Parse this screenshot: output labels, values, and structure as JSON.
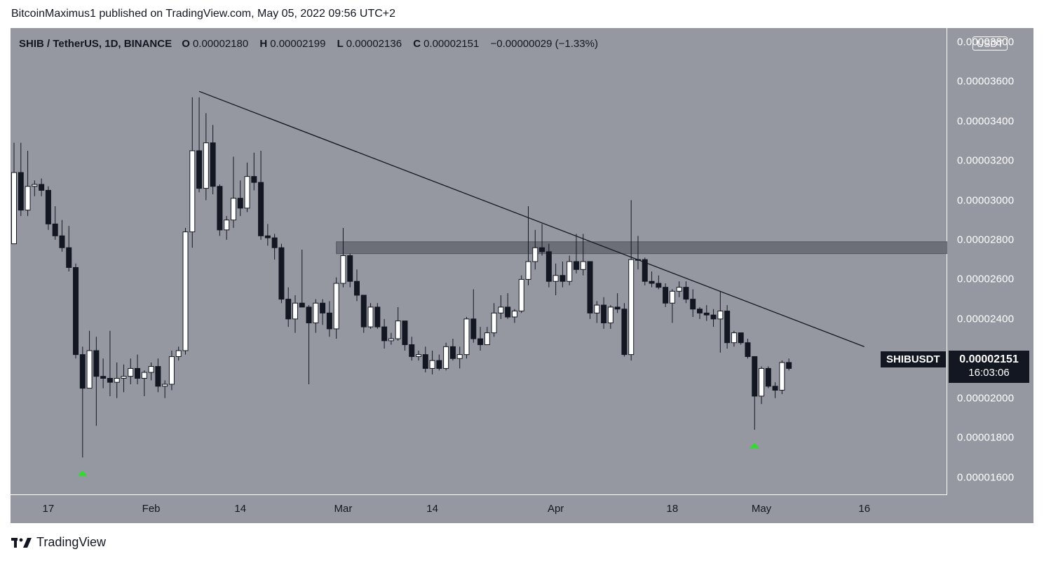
{
  "header": {
    "publisher_line": "BitcoinMaximus1 published on TradingView.com, May 05, 2022 09:56 UTC+2"
  },
  "legend": {
    "symbol": "SHIB / TetherUS, 1D, BINANCE",
    "open_label": "O",
    "open_value": "0.00002180",
    "high_label": "H",
    "high_value": "0.00002199",
    "low_label": "L",
    "low_value": "0.00002136",
    "close_label": "C",
    "close_value": "0.00002151",
    "change": "−0.00000029 (−1.33%)"
  },
  "currency_badge": "USDT",
  "colors": {
    "background": "#9598a1",
    "bull_fill": "#ffffff",
    "bear_fill": "#131722",
    "signal_arrow": "#2fdc2f",
    "resistance_zone": "#5f6269"
  },
  "symbol_tag": "SHIBUSDT",
  "last_price": "0.00002151",
  "countdown": "16:03:06",
  "footer": {
    "brand": "TradingView",
    "logo_icon": "tradingview-logo-icon"
  },
  "chart_data": {
    "type": "candlestick",
    "ylim": [
      1.51e-05,
      3.87e-05
    ],
    "y_ticks": [
      {
        "value": 3.8e-05,
        "label": "0.00003800"
      },
      {
        "value": 3.6e-05,
        "label": "0.00003600"
      },
      {
        "value": 3.4e-05,
        "label": "0.00003400"
      },
      {
        "value": 3.2e-05,
        "label": "0.00003200"
      },
      {
        "value": 3e-05,
        "label": "0.00003000"
      },
      {
        "value": 2.8e-05,
        "label": "0.00002800"
      },
      {
        "value": 2.6e-05,
        "label": "0.00002600"
      },
      {
        "value": 2.4e-05,
        "label": "0.00002400"
      },
      {
        "value": 2.2e-05,
        "label": "0.00002200"
      },
      {
        "value": 2e-05,
        "label": "0.00002000"
      },
      {
        "value": 1.8e-05,
        "label": "0.00001800"
      },
      {
        "value": 1.6e-05,
        "label": "0.00001600"
      }
    ],
    "x_ticks": [
      {
        "date": "2022-01-17",
        "label": "17"
      },
      {
        "date": "2022-02-01",
        "label": "Feb"
      },
      {
        "date": "2022-02-14",
        "label": "14"
      },
      {
        "date": "2022-03-01",
        "label": "Mar"
      },
      {
        "date": "2022-03-14",
        "label": "14"
      },
      {
        "date": "2022-04-01",
        "label": "Apr"
      },
      {
        "date": "2022-04-18",
        "label": "18"
      },
      {
        "date": "2022-05-01",
        "label": "May"
      },
      {
        "date": "2022-05-16",
        "label": "16"
      }
    ],
    "x_range": [
      "2022-01-12",
      "2022-05-19"
    ],
    "candles": [
      {
        "date": "2022-01-12",
        "o": 2.78e-05,
        "h": 3.29e-05,
        "l": 2.78e-05,
        "c": 3.14e-05
      },
      {
        "date": "2022-01-13",
        "o": 3.14e-05,
        "h": 3.29e-05,
        "l": 2.92e-05,
        "c": 2.95e-05
      },
      {
        "date": "2022-01-14",
        "o": 2.95e-05,
        "h": 3.25e-05,
        "l": 2.92e-05,
        "c": 3.07e-05
      },
      {
        "date": "2022-01-15",
        "o": 3.07e-05,
        "h": 3.1e-05,
        "l": 3.02e-05,
        "c": 3.08e-05
      },
      {
        "date": "2022-01-16",
        "o": 3.08e-05,
        "h": 3.11e-05,
        "l": 3.02e-05,
        "c": 3.05e-05
      },
      {
        "date": "2022-01-17",
        "o": 3.05e-05,
        "h": 3.07e-05,
        "l": 2.85e-05,
        "c": 2.88e-05
      },
      {
        "date": "2022-01-18",
        "o": 2.88e-05,
        "h": 2.97e-05,
        "l": 2.8e-05,
        "c": 2.82e-05
      },
      {
        "date": "2022-01-19",
        "o": 2.82e-05,
        "h": 2.9e-05,
        "l": 2.74e-05,
        "c": 2.76e-05
      },
      {
        "date": "2022-01-20",
        "o": 2.76e-05,
        "h": 2.87e-05,
        "l": 2.64e-05,
        "c": 2.66e-05
      },
      {
        "date": "2022-01-21",
        "o": 2.66e-05,
        "h": 2.68e-05,
        "l": 2.2e-05,
        "c": 2.22e-05
      },
      {
        "date": "2022-01-22",
        "o": 2.22e-05,
        "h": 2.26e-05,
        "l": 1.7e-05,
        "c": 2.05e-05
      },
      {
        "date": "2022-01-23",
        "o": 2.05e-05,
        "h": 2.34e-05,
        "l": 2.05e-05,
        "c": 2.24e-05
      },
      {
        "date": "2022-01-24",
        "o": 2.24e-05,
        "h": 2.31e-05,
        "l": 1.86e-05,
        "c": 2.11e-05
      },
      {
        "date": "2022-01-25",
        "o": 2.11e-05,
        "h": 2.2e-05,
        "l": 2.05e-05,
        "c": 2.1e-05
      },
      {
        "date": "2022-01-26",
        "o": 2.1e-05,
        "h": 2.34e-05,
        "l": 2.01e-05,
        "c": 2.08e-05
      },
      {
        "date": "2022-01-27",
        "o": 2.08e-05,
        "h": 2.18e-05,
        "l": 2e-05,
        "c": 2.1e-05
      },
      {
        "date": "2022-01-28",
        "o": 2.1e-05,
        "h": 2.17e-05,
        "l": 2.03e-05,
        "c": 2.11e-05
      },
      {
        "date": "2022-01-29",
        "o": 2.11e-05,
        "h": 2.2e-05,
        "l": 2.07e-05,
        "c": 2.15e-05
      },
      {
        "date": "2022-01-30",
        "o": 2.15e-05,
        "h": 2.22e-05,
        "l": 2.07e-05,
        "c": 2.1e-05
      },
      {
        "date": "2022-01-31",
        "o": 2.1e-05,
        "h": 2.14e-05,
        "l": 2.01e-05,
        "c": 2.13e-05
      },
      {
        "date": "2022-02-01",
        "o": 2.13e-05,
        "h": 2.18e-05,
        "l": 2.09e-05,
        "c": 2.16e-05
      },
      {
        "date": "2022-02-02",
        "o": 2.16e-05,
        "h": 2.2e-05,
        "l": 2.03e-05,
        "c": 2.06e-05
      },
      {
        "date": "2022-02-03",
        "o": 2.06e-05,
        "h": 2.09e-05,
        "l": 2e-05,
        "c": 2.07e-05
      },
      {
        "date": "2022-02-04",
        "o": 2.07e-05,
        "h": 2.24e-05,
        "l": 2.04e-05,
        "c": 2.21e-05
      },
      {
        "date": "2022-02-05",
        "o": 2.21e-05,
        "h": 2.26e-05,
        "l": 2.19e-05,
        "c": 2.24e-05
      },
      {
        "date": "2022-02-06",
        "o": 2.24e-05,
        "h": 2.86e-05,
        "l": 2.22e-05,
        "c": 2.84e-05
      },
      {
        "date": "2022-02-07",
        "o": 2.84e-05,
        "h": 3.52e-05,
        "l": 2.76e-05,
        "c": 3.25e-05
      },
      {
        "date": "2022-02-08",
        "o": 3.25e-05,
        "h": 3.52e-05,
        "l": 3.04e-05,
        "c": 3.06e-05
      },
      {
        "date": "2022-02-09",
        "o": 3.06e-05,
        "h": 3.44e-05,
        "l": 3e-05,
        "c": 3.29e-05
      },
      {
        "date": "2022-02-10",
        "o": 3.29e-05,
        "h": 3.38e-05,
        "l": 3.03e-05,
        "c": 3.07e-05
      },
      {
        "date": "2022-02-11",
        "o": 3.07e-05,
        "h": 3.08e-05,
        "l": 2.82e-05,
        "c": 2.85e-05
      },
      {
        "date": "2022-02-12",
        "o": 2.85e-05,
        "h": 2.92e-05,
        "l": 2.8e-05,
        "c": 2.9e-05
      },
      {
        "date": "2022-02-13",
        "o": 2.9e-05,
        "h": 3.22e-05,
        "l": 2.86e-05,
        "c": 3.01e-05
      },
      {
        "date": "2022-02-14",
        "o": 3.01e-05,
        "h": 3.1e-05,
        "l": 2.92e-05,
        "c": 2.96e-05
      },
      {
        "date": "2022-02-15",
        "o": 2.96e-05,
        "h": 3.19e-05,
        "l": 2.94e-05,
        "c": 3.12e-05
      },
      {
        "date": "2022-02-16",
        "o": 3.12e-05,
        "h": 3.24e-05,
        "l": 3.05e-05,
        "c": 3.09e-05
      },
      {
        "date": "2022-02-17",
        "o": 3.09e-05,
        "h": 3.25e-05,
        "l": 2.8e-05,
        "c": 2.82e-05
      },
      {
        "date": "2022-02-18",
        "o": 2.82e-05,
        "h": 2.88e-05,
        "l": 2.77e-05,
        "c": 2.81e-05
      },
      {
        "date": "2022-02-19",
        "o": 2.81e-05,
        "h": 2.83e-05,
        "l": 2.7e-05,
        "c": 2.76e-05
      },
      {
        "date": "2022-02-20",
        "o": 2.76e-05,
        "h": 2.78e-05,
        "l": 2.48e-05,
        "c": 2.5e-05
      },
      {
        "date": "2022-02-21",
        "o": 2.5e-05,
        "h": 2.56e-05,
        "l": 2.36e-05,
        "c": 2.4e-05
      },
      {
        "date": "2022-02-22",
        "o": 2.4e-05,
        "h": 2.52e-05,
        "l": 2.33e-05,
        "c": 2.48e-05
      },
      {
        "date": "2022-02-23",
        "o": 2.48e-05,
        "h": 2.75e-05,
        "l": 2.46e-05,
        "c": 2.46e-05
      },
      {
        "date": "2022-02-24",
        "o": 2.46e-05,
        "h": 2.47e-05,
        "l": 2.07e-05,
        "c": 2.38e-05
      },
      {
        "date": "2022-02-25",
        "o": 2.38e-05,
        "h": 2.5e-05,
        "l": 2.33e-05,
        "c": 2.48e-05
      },
      {
        "date": "2022-02-26",
        "o": 2.48e-05,
        "h": 2.5e-05,
        "l": 2.37e-05,
        "c": 2.43e-05
      },
      {
        "date": "2022-02-27",
        "o": 2.43e-05,
        "h": 2.49e-05,
        "l": 2.31e-05,
        "c": 2.35e-05
      },
      {
        "date": "2022-02-28",
        "o": 2.35e-05,
        "h": 2.61e-05,
        "l": 2.3e-05,
        "c": 2.58e-05
      },
      {
        "date": "2022-03-01",
        "o": 2.58e-05,
        "h": 2.86e-05,
        "l": 2.56e-05,
        "c": 2.72e-05
      },
      {
        "date": "2022-03-02",
        "o": 2.72e-05,
        "h": 2.73e-05,
        "l": 2.56e-05,
        "c": 2.59e-05
      },
      {
        "date": "2022-03-03",
        "o": 2.59e-05,
        "h": 2.65e-05,
        "l": 2.49e-05,
        "c": 2.52e-05
      },
      {
        "date": "2022-03-04",
        "o": 2.52e-05,
        "h": 2.52e-05,
        "l": 2.33e-05,
        "c": 2.36e-05
      },
      {
        "date": "2022-03-05",
        "o": 2.36e-05,
        "h": 2.48e-05,
        "l": 2.35e-05,
        "c": 2.46e-05
      },
      {
        "date": "2022-03-06",
        "o": 2.46e-05,
        "h": 2.48e-05,
        "l": 2.35e-05,
        "c": 2.36e-05
      },
      {
        "date": "2022-03-07",
        "o": 2.36e-05,
        "h": 2.4e-05,
        "l": 2.25e-05,
        "c": 2.29e-05
      },
      {
        "date": "2022-03-08",
        "o": 2.29e-05,
        "h": 2.33e-05,
        "l": 2.27e-05,
        "c": 2.3e-05
      },
      {
        "date": "2022-03-09",
        "o": 2.3e-05,
        "h": 2.46e-05,
        "l": 2.29e-05,
        "c": 2.39e-05
      },
      {
        "date": "2022-03-10",
        "o": 2.39e-05,
        "h": 2.39e-05,
        "l": 2.24e-05,
        "c": 2.27e-05
      },
      {
        "date": "2022-03-11",
        "o": 2.27e-05,
        "h": 2.31e-05,
        "l": 2.19e-05,
        "c": 2.21e-05
      },
      {
        "date": "2022-03-12",
        "o": 2.21e-05,
        "h": 2.24e-05,
        "l": 2.19e-05,
        "c": 2.22e-05
      },
      {
        "date": "2022-03-13",
        "o": 2.22e-05,
        "h": 2.26e-05,
        "l": 2.13e-05,
        "c": 2.15e-05
      },
      {
        "date": "2022-03-14",
        "o": 2.15e-05,
        "h": 2.24e-05,
        "l": 2.12e-05,
        "c": 2.19e-05
      },
      {
        "date": "2022-03-15",
        "o": 2.19e-05,
        "h": 2.22e-05,
        "l": 2.14e-05,
        "c": 2.15e-05
      },
      {
        "date": "2022-03-16",
        "o": 2.15e-05,
        "h": 2.28e-05,
        "l": 2.14e-05,
        "c": 2.26e-05
      },
      {
        "date": "2022-03-17",
        "o": 2.26e-05,
        "h": 2.3e-05,
        "l": 2.19e-05,
        "c": 2.2e-05
      },
      {
        "date": "2022-03-18",
        "o": 2.2e-05,
        "h": 2.26e-05,
        "l": 2.15e-05,
        "c": 2.22e-05
      },
      {
        "date": "2022-03-19",
        "o": 2.22e-05,
        "h": 2.41e-05,
        "l": 2.2e-05,
        "c": 2.4e-05
      },
      {
        "date": "2022-03-20",
        "o": 2.4e-05,
        "h": 2.55e-05,
        "l": 2.28e-05,
        "c": 2.3e-05
      },
      {
        "date": "2022-03-21",
        "o": 2.3e-05,
        "h": 2.36e-05,
        "l": 2.24e-05,
        "c": 2.27e-05
      },
      {
        "date": "2022-03-22",
        "o": 2.27e-05,
        "h": 2.36e-05,
        "l": 2.27e-05,
        "c": 2.33e-05
      },
      {
        "date": "2022-03-23",
        "o": 2.33e-05,
        "h": 2.48e-05,
        "l": 2.31e-05,
        "c": 2.43e-05
      },
      {
        "date": "2022-03-24",
        "o": 2.43e-05,
        "h": 2.52e-05,
        "l": 2.4e-05,
        "c": 2.46e-05
      },
      {
        "date": "2022-03-25",
        "o": 2.46e-05,
        "h": 2.53e-05,
        "l": 2.4e-05,
        "c": 2.41e-05
      },
      {
        "date": "2022-03-26",
        "o": 2.41e-05,
        "h": 2.45e-05,
        "l": 2.38e-05,
        "c": 2.44e-05
      },
      {
        "date": "2022-03-27",
        "o": 2.44e-05,
        "h": 2.62e-05,
        "l": 2.43e-05,
        "c": 2.6e-05
      },
      {
        "date": "2022-03-28",
        "o": 2.6e-05,
        "h": 2.97e-05,
        "l": 2.57e-05,
        "c": 2.69e-05
      },
      {
        "date": "2022-03-29",
        "o": 2.69e-05,
        "h": 2.85e-05,
        "l": 2.65e-05,
        "c": 2.76e-05
      },
      {
        "date": "2022-03-30",
        "o": 2.76e-05,
        "h": 2.88e-05,
        "l": 2.72e-05,
        "c": 2.74e-05
      },
      {
        "date": "2022-03-31",
        "o": 2.74e-05,
        "h": 2.78e-05,
        "l": 2.56e-05,
        "c": 2.59e-05
      },
      {
        "date": "2022-04-01",
        "o": 2.59e-05,
        "h": 2.68e-05,
        "l": 2.52e-05,
        "c": 2.62e-05
      },
      {
        "date": "2022-04-02",
        "o": 2.62e-05,
        "h": 2.69e-05,
        "l": 2.56e-05,
        "c": 2.59e-05
      },
      {
        "date": "2022-04-03",
        "o": 2.59e-05,
        "h": 2.72e-05,
        "l": 2.57e-05,
        "c": 2.69e-05
      },
      {
        "date": "2022-04-04",
        "o": 2.69e-05,
        "h": 2.83e-05,
        "l": 2.63e-05,
        "c": 2.65e-05
      },
      {
        "date": "2022-04-05",
        "o": 2.65e-05,
        "h": 2.83e-05,
        "l": 2.62e-05,
        "c": 2.69e-05
      },
      {
        "date": "2022-04-06",
        "o": 2.69e-05,
        "h": 2.69e-05,
        "l": 2.4e-05,
        "c": 2.43e-05
      },
      {
        "date": "2022-04-07",
        "o": 2.43e-05,
        "h": 2.49e-05,
        "l": 2.38e-05,
        "c": 2.47e-05
      },
      {
        "date": "2022-04-08",
        "o": 2.47e-05,
        "h": 2.51e-05,
        "l": 2.35e-05,
        "c": 2.38e-05
      },
      {
        "date": "2022-04-09",
        "o": 2.38e-05,
        "h": 2.47e-05,
        "l": 2.35e-05,
        "c": 2.46e-05
      },
      {
        "date": "2022-04-10",
        "o": 2.46e-05,
        "h": 2.53e-05,
        "l": 2.43e-05,
        "c": 2.45e-05
      },
      {
        "date": "2022-04-11",
        "o": 2.45e-05,
        "h": 2.48e-05,
        "l": 2.21e-05,
        "c": 2.22e-05
      },
      {
        "date": "2022-04-12",
        "o": 2.22e-05,
        "h": 3e-05,
        "l": 2.19e-05,
        "c": 2.7e-05
      },
      {
        "date": "2022-04-13",
        "o": 2.7e-05,
        "h": 2.82e-05,
        "l": 2.65e-05,
        "c": 2.7e-05
      },
      {
        "date": "2022-04-14",
        "o": 2.7e-05,
        "h": 2.71e-05,
        "l": 2.57e-05,
        "c": 2.59e-05
      },
      {
        "date": "2022-04-15",
        "o": 2.59e-05,
        "h": 2.64e-05,
        "l": 2.56e-05,
        "c": 2.58e-05
      },
      {
        "date": "2022-04-16",
        "o": 2.58e-05,
        "h": 2.62e-05,
        "l": 2.55e-05,
        "c": 2.56e-05
      },
      {
        "date": "2022-04-17",
        "o": 2.56e-05,
        "h": 2.58e-05,
        "l": 2.46e-05,
        "c": 2.48e-05
      },
      {
        "date": "2022-04-18",
        "o": 2.48e-05,
        "h": 2.55e-05,
        "l": 2.38e-05,
        "c": 2.54e-05
      },
      {
        "date": "2022-04-19",
        "o": 2.54e-05,
        "h": 2.59e-05,
        "l": 2.51e-05,
        "c": 2.56e-05
      },
      {
        "date": "2022-04-20",
        "o": 2.56e-05,
        "h": 2.59e-05,
        "l": 2.48e-05,
        "c": 2.5e-05
      },
      {
        "date": "2022-04-21",
        "o": 2.5e-05,
        "h": 2.55e-05,
        "l": 2.41e-05,
        "c": 2.45e-05
      },
      {
        "date": "2022-04-22",
        "o": 2.45e-05,
        "h": 2.46e-05,
        "l": 2.4e-05,
        "c": 2.43e-05
      },
      {
        "date": "2022-04-23",
        "o": 2.43e-05,
        "h": 2.47e-05,
        "l": 2.39e-05,
        "c": 2.42e-05
      },
      {
        "date": "2022-04-24",
        "o": 2.42e-05,
        "h": 2.45e-05,
        "l": 2.36e-05,
        "c": 2.4e-05
      },
      {
        "date": "2022-04-25",
        "o": 2.4e-05,
        "h": 2.54e-05,
        "l": 2.23e-05,
        "c": 2.44e-05
      },
      {
        "date": "2022-04-26",
        "o": 2.44e-05,
        "h": 2.47e-05,
        "l": 2.25e-05,
        "c": 2.28e-05
      },
      {
        "date": "2022-04-27",
        "o": 2.28e-05,
        "h": 2.34e-05,
        "l": 2.26e-05,
        "c": 2.33e-05
      },
      {
        "date": "2022-04-28",
        "o": 2.33e-05,
        "h": 2.33e-05,
        "l": 2.27e-05,
        "c": 2.28e-05
      },
      {
        "date": "2022-04-29",
        "o": 2.28e-05,
        "h": 2.3e-05,
        "l": 2.2e-05,
        "c": 2.21e-05
      },
      {
        "date": "2022-04-30",
        "o": 2.21e-05,
        "h": 2.21e-05,
        "l": 1.84e-05,
        "c": 2.01e-05
      },
      {
        "date": "2022-05-01",
        "o": 2.01e-05,
        "h": 2.16e-05,
        "l": 1.97e-05,
        "c": 2.15e-05
      },
      {
        "date": "2022-05-02",
        "o": 2.15e-05,
        "h": 2.16e-05,
        "l": 2.05e-05,
        "c": 2.06e-05
      },
      {
        "date": "2022-05-03",
        "o": 2.06e-05,
        "h": 2.08e-05,
        "l": 2e-05,
        "c": 2.04e-05
      },
      {
        "date": "2022-05-04",
        "o": 2.04e-05,
        "h": 2.19e-05,
        "l": 2.02e-05,
        "c": 2.18e-05
      },
      {
        "date": "2022-05-05",
        "o": 2.18e-05,
        "h": 2.2e-05,
        "l": 2.14e-05,
        "c": 2.15e-05
      }
    ],
    "annotations": {
      "descending_trendline": {
        "from": {
          "date": "2022-02-08",
          "value": 3.55e-05
        },
        "to": {
          "date": "2022-05-16",
          "value": 2.26e-05
        }
      },
      "resistance_zone": {
        "from_date": "2022-02-28",
        "to_date": "2022-05-19",
        "low": 2.73e-05,
        "high": 2.79e-05
      },
      "buy_arrows": [
        {
          "date": "2022-01-22",
          "value": 1.62e-05
        },
        {
          "date": "2022-04-30",
          "value": 1.76e-05
        }
      ]
    },
    "last_price_value": 2.151e-05
  }
}
